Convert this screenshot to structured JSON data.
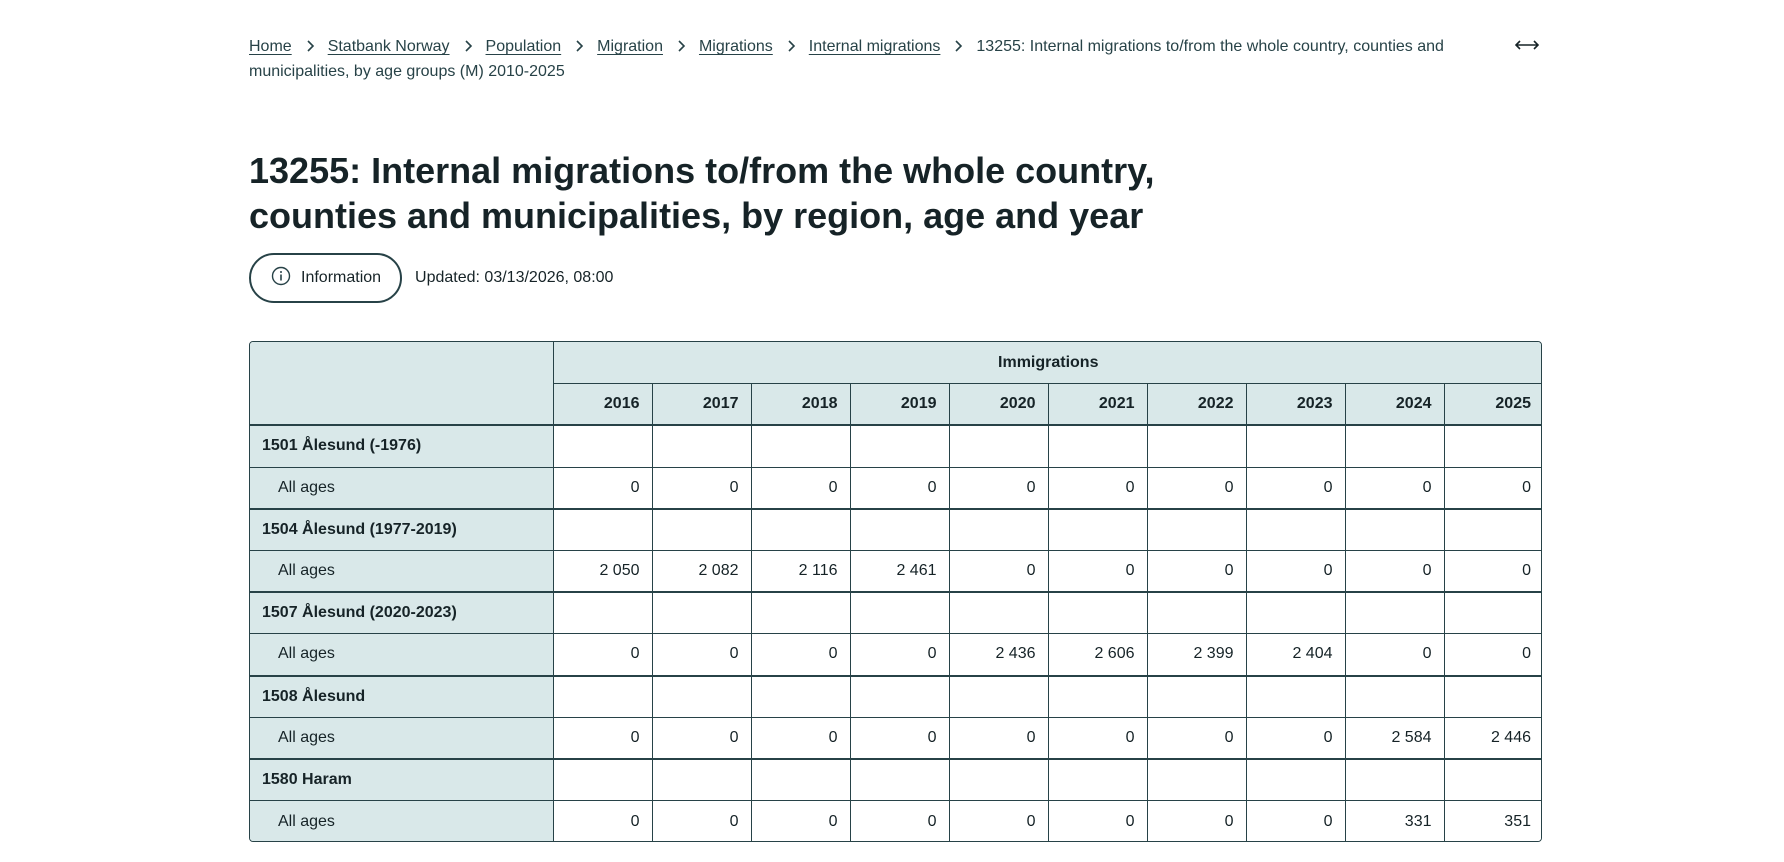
{
  "breadcrumb": {
    "items": [
      "Home",
      "Statbank Norway",
      "Population",
      "Migration",
      "Migrations",
      "Internal migrations"
    ],
    "current": "13255: Internal migrations to/from the whole country, counties and municipalities, by age groups (M) 2010-2025",
    "expand_icon": "expand-arrows-icon",
    "separator_icon": "chevron-right-icon"
  },
  "page": {
    "title": "13255: Internal migrations to/from the whole country, counties and municipalities, by region, age and year"
  },
  "info": {
    "button_label": "Information",
    "icon": "info-icon",
    "updated": "Updated: 03/13/2026, 08:00"
  },
  "table": {
    "group_header": "Immigrations",
    "years": [
      "2016",
      "2017",
      "2018",
      "2019",
      "2020",
      "2021",
      "2022",
      "2023",
      "2024",
      "2025"
    ],
    "rows": [
      {
        "region": "1501 Ålesund (-1976)",
        "sub_label": "All ages",
        "values": [
          "0",
          "0",
          "0",
          "0",
          "0",
          "0",
          "0",
          "0",
          "0",
          "0"
        ]
      },
      {
        "region": "1504 Ålesund (1977-2019)",
        "sub_label": "All ages",
        "values": [
          "2 050",
          "2 082",
          "2 116",
          "2 461",
          "0",
          "0",
          "0",
          "0",
          "0",
          "0"
        ]
      },
      {
        "region": "1507 Ålesund (2020-2023)",
        "sub_label": "All ages",
        "values": [
          "0",
          "0",
          "0",
          "0",
          "2 436",
          "2 606",
          "2 399",
          "2 404",
          "0",
          "0"
        ]
      },
      {
        "region": "1508 Ålesund",
        "sub_label": "All ages",
        "values": [
          "0",
          "0",
          "0",
          "0",
          "0",
          "0",
          "0",
          "0",
          "2 584",
          "2 446"
        ]
      },
      {
        "region": "1580 Haram",
        "sub_label": "All ages",
        "values": [
          "0",
          "0",
          "0",
          "0",
          "0",
          "0",
          "0",
          "0",
          "331",
          "351"
        ]
      }
    ]
  },
  "colors": {
    "header_bg": "#d9e8e9",
    "border": "#274247",
    "text": "#162327"
  }
}
